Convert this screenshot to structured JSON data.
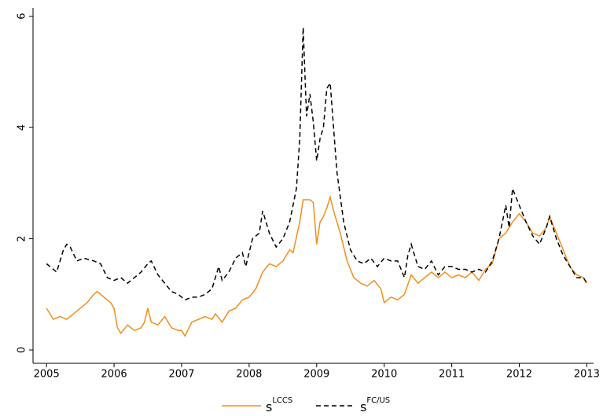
{
  "chart_data": {
    "type": "line",
    "xlim": [
      2004.8,
      2013.1
    ],
    "ylim": [
      -0.24,
      6.15
    ],
    "xticks": [
      2005,
      2006,
      2007,
      2008,
      2009,
      2010,
      2011,
      2012,
      2013
    ],
    "yticks": [
      0,
      2,
      4,
      6
    ],
    "grid": false,
    "legend": "bottom",
    "series": [
      {
        "name": "s",
        "name_sup": "LCCS",
        "color": "#f28e1c",
        "dashed": false,
        "x": [
          2005.0,
          2005.1,
          2005.2,
          2005.3,
          2005.4,
          2005.5,
          2005.6,
          2005.7,
          2005.75,
          2005.85,
          2005.95,
          2006.0,
          2006.05,
          2006.1,
          2006.2,
          2006.3,
          2006.4,
          2006.45,
          2006.5,
          2006.55,
          2006.65,
          2006.75,
          2006.85,
          2006.95,
          2007.0,
          2007.05,
          2007.15,
          2007.25,
          2007.35,
          2007.45,
          2007.5,
          2007.6,
          2007.7,
          2007.8,
          2007.9,
          2008.0,
          2008.1,
          2008.2,
          2008.3,
          2008.4,
          2008.5,
          2008.6,
          2008.65,
          2008.75,
          2008.8,
          2008.9,
          2008.95,
          2009.0,
          2009.05,
          2009.1,
          2009.15,
          2009.2,
          2009.25,
          2009.35,
          2009.45,
          2009.55,
          2009.65,
          2009.75,
          2009.85,
          2009.95,
          2010.0,
          2010.1,
          2010.2,
          2010.3,
          2010.4,
          2010.5,
          2010.6,
          2010.7,
          2010.8,
          2010.9,
          2011.0,
          2011.1,
          2011.2,
          2011.3,
          2011.4,
          2011.5,
          2011.6,
          2011.7,
          2011.8,
          2011.9,
          2012.0,
          2012.1,
          2012.2,
          2012.3,
          2012.4,
          2012.45,
          2012.55,
          2012.65,
          2012.75,
          2012.85,
          2012.95,
          2013.0
        ],
        "values": [
          0.75,
          0.55,
          0.6,
          0.55,
          0.65,
          0.75,
          0.85,
          1.0,
          1.05,
          0.95,
          0.85,
          0.75,
          0.4,
          0.3,
          0.45,
          0.35,
          0.4,
          0.5,
          0.75,
          0.5,
          0.45,
          0.6,
          0.4,
          0.35,
          0.35,
          0.25,
          0.5,
          0.55,
          0.6,
          0.55,
          0.65,
          0.5,
          0.7,
          0.75,
          0.9,
          0.95,
          1.1,
          1.4,
          1.55,
          1.5,
          1.6,
          1.8,
          1.75,
          2.3,
          2.7,
          2.7,
          2.65,
          1.9,
          2.3,
          2.4,
          2.55,
          2.75,
          2.5,
          2.1,
          1.6,
          1.3,
          1.2,
          1.15,
          1.25,
          1.1,
          0.85,
          0.95,
          0.9,
          1.0,
          1.35,
          1.2,
          1.3,
          1.4,
          1.3,
          1.4,
          1.3,
          1.35,
          1.3,
          1.4,
          1.25,
          1.45,
          1.55,
          2.0,
          2.1,
          2.3,
          2.45,
          2.3,
          2.1,
          2.05,
          2.2,
          2.4,
          2.1,
          1.8,
          1.5,
          1.35,
          1.3,
          1.2
        ]
      },
      {
        "name": "s",
        "name_sup": "FC/US",
        "color": "#000000",
        "dashed": true,
        "x": [
          2005.0,
          2005.1,
          2005.15,
          2005.25,
          2005.3,
          2005.35,
          2005.45,
          2005.55,
          2005.7,
          2005.8,
          2005.9,
          2006.0,
          2006.1,
          2006.2,
          2006.3,
          2006.4,
          2006.5,
          2006.55,
          2006.65,
          2006.75,
          2006.85,
          2006.95,
          2007.05,
          2007.15,
          2007.25,
          2007.35,
          2007.45,
          2007.55,
          2007.6,
          2007.7,
          2007.8,
          2007.9,
          2007.95,
          2008.05,
          2008.15,
          2008.2,
          2008.3,
          2008.4,
          2008.5,
          2008.6,
          2008.7,
          2008.75,
          2008.8,
          2008.85,
          2008.9,
          2008.95,
          2009.0,
          2009.05,
          2009.1,
          2009.15,
          2009.2,
          2009.3,
          2009.4,
          2009.5,
          2009.6,
          2009.7,
          2009.8,
          2009.9,
          2010.0,
          2010.1,
          2010.2,
          2010.3,
          2010.35,
          2010.4,
          2010.5,
          2010.6,
          2010.7,
          2010.8,
          2010.9,
          2011.0,
          2011.1,
          2011.2,
          2011.3,
          2011.4,
          2011.5,
          2011.6,
          2011.7,
          2011.8,
          2011.85,
          2011.9,
          2012.0,
          2012.1,
          2012.2,
          2012.3,
          2012.4,
          2012.45,
          2012.55,
          2012.65,
          2012.75,
          2012.85,
          2012.95,
          2013.0
        ],
        "values": [
          1.55,
          1.45,
          1.4,
          1.8,
          1.9,
          1.85,
          1.6,
          1.65,
          1.6,
          1.55,
          1.3,
          1.25,
          1.3,
          1.2,
          1.3,
          1.4,
          1.55,
          1.6,
          1.35,
          1.2,
          1.05,
          1.0,
          0.9,
          0.95,
          0.95,
          1.0,
          1.1,
          1.5,
          1.25,
          1.4,
          1.65,
          1.75,
          1.5,
          2.0,
          2.1,
          2.5,
          2.1,
          1.85,
          2.0,
          2.3,
          2.9,
          3.8,
          5.8,
          4.2,
          4.6,
          4.1,
          3.4,
          3.8,
          4.0,
          4.7,
          4.8,
          3.2,
          2.3,
          1.8,
          1.6,
          1.55,
          1.65,
          1.5,
          1.65,
          1.6,
          1.6,
          1.3,
          1.7,
          1.9,
          1.5,
          1.45,
          1.6,
          1.35,
          1.5,
          1.5,
          1.45,
          1.45,
          1.4,
          1.45,
          1.4,
          1.6,
          2.0,
          2.6,
          2.2,
          2.9,
          2.6,
          2.3,
          2.05,
          1.9,
          2.2,
          2.4,
          2.0,
          1.7,
          1.5,
          1.3,
          1.3,
          1.2
        ]
      }
    ]
  }
}
